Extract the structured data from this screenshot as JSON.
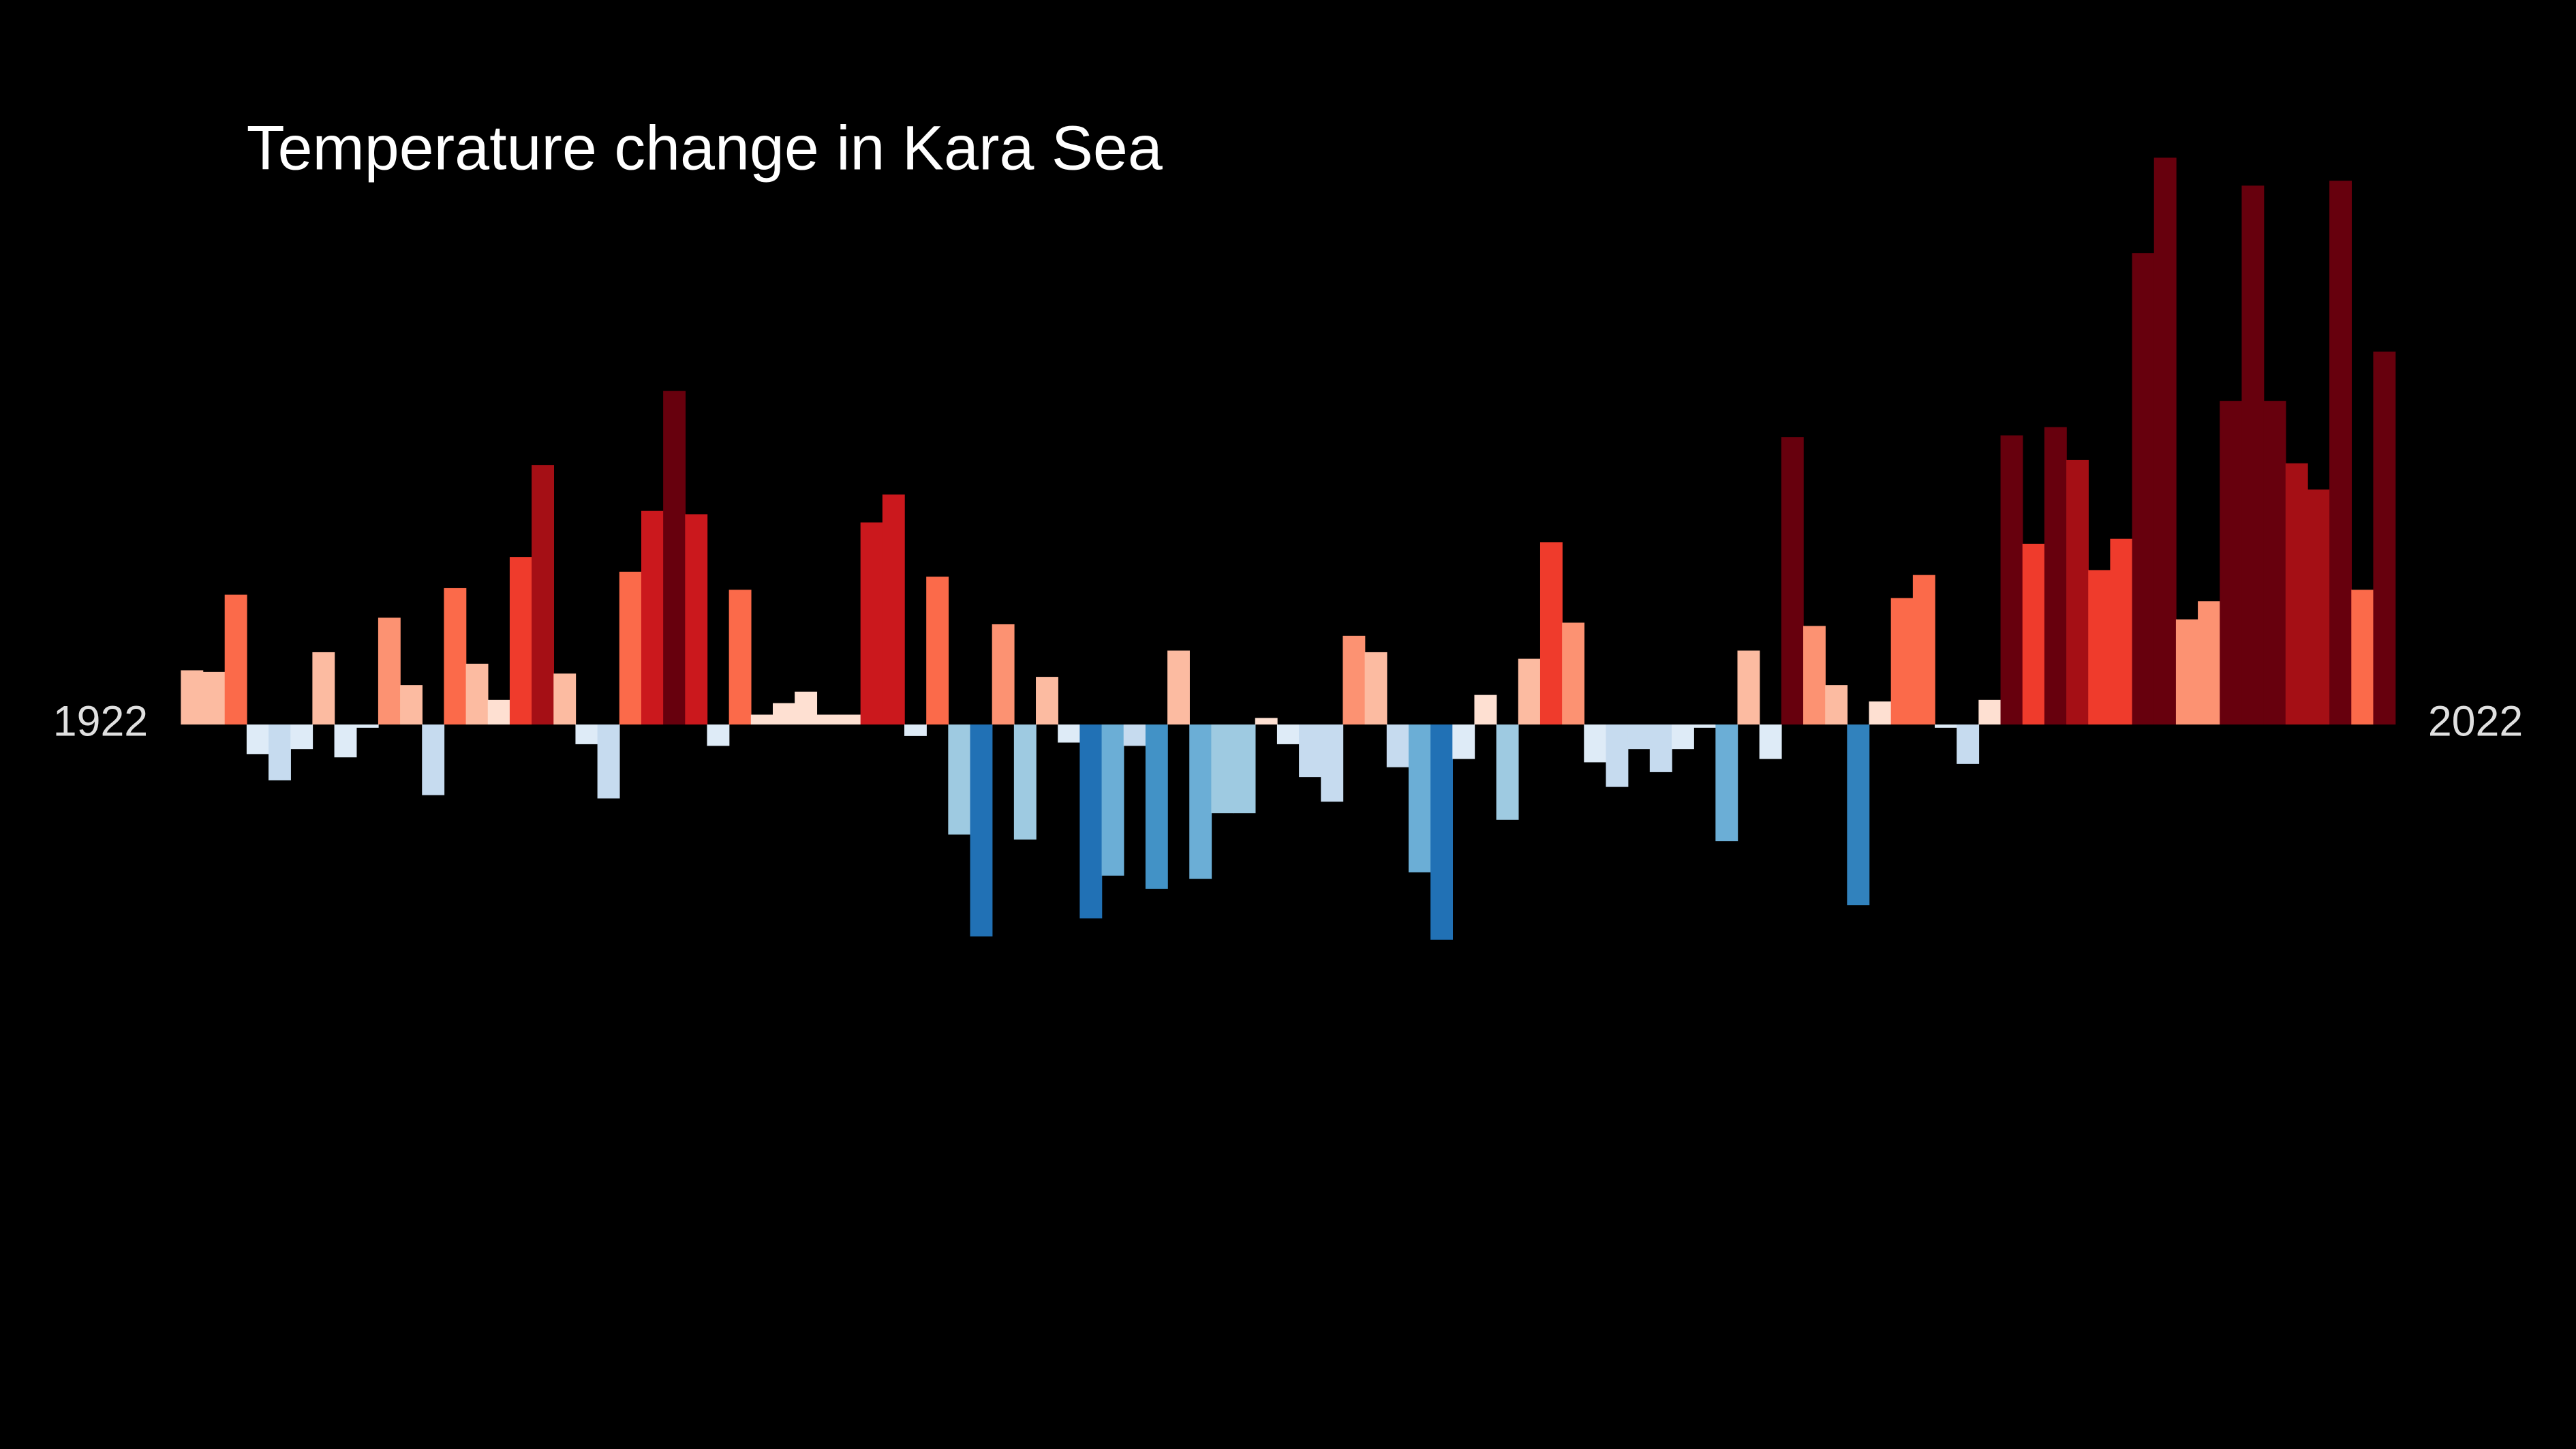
{
  "chart_data": {
    "type": "bar",
    "title": "Temperature change in Kara Sea",
    "categories": [
      "1922",
      null,
      null,
      null,
      null,
      null,
      null,
      null,
      null,
      null,
      null,
      null,
      null,
      null,
      null,
      null,
      null,
      null,
      null,
      null,
      null,
      null,
      null,
      null,
      null,
      null,
      null,
      null,
      null,
      null,
      null,
      null,
      null,
      null,
      null,
      null,
      null,
      null,
      null,
      null,
      null,
      null,
      null,
      null,
      null,
      null,
      null,
      null,
      null,
      null,
      null,
      null,
      null,
      null,
      null,
      null,
      null,
      null,
      null,
      null,
      null,
      null,
      null,
      null,
      null,
      null,
      null,
      null,
      null,
      null,
      null,
      null,
      null,
      null,
      null,
      null,
      null,
      null,
      null,
      null,
      null,
      null,
      null,
      null,
      null,
      null,
      null,
      null,
      null,
      null,
      null,
      null,
      null,
      null,
      null,
      null,
      null,
      null,
      null,
      null,
      "2022"
    ],
    "values": [
      0.33,
      0.32,
      0.79,
      -0.18,
      -0.34,
      -0.15,
      0.44,
      -0.2,
      -0.02,
      0.65,
      0.24,
      -0.43,
      0.83,
      0.37,
      0.15,
      1.02,
      1.58,
      0.31,
      -0.12,
      -0.45,
      0.93,
      1.3,
      2.03,
      1.28,
      -0.13,
      0.82,
      0.06,
      0.13,
      0.2,
      0.06,
      0.06,
      1.23,
      1.4,
      -0.07,
      0.9,
      -0.67,
      -1.29,
      0.61,
      -0.7,
      0.29,
      -0.11,
      -1.18,
      -0.92,
      -0.13,
      -1.0,
      0.45,
      -0.94,
      -0.54,
      -0.54,
      0.04,
      -0.12,
      -0.32,
      -0.47,
      0.54,
      0.44,
      -0.26,
      -0.9,
      -1.31,
      -0.21,
      0.18,
      -0.58,
      0.4,
      1.11,
      0.62,
      -0.23,
      -0.38,
      -0.15,
      -0.29,
      -0.15,
      -0.02,
      -0.71,
      0.45,
      -0.21,
      1.75,
      0.6,
      0.24,
      -1.1,
      0.14,
      0.77,
      0.91,
      -0.02,
      -0.24,
      0.15,
      1.76,
      1.1,
      1.81,
      1.61,
      0.94,
      1.13,
      2.87,
      3.45,
      0.64,
      0.75,
      1.97,
      3.28,
      1.97,
      1.59,
      1.43,
      3.31,
      0.82,
      2.27
    ],
    "colors": [
      "#fcbba1",
      "#fcbba1",
      "#fb6a4a",
      "#deebf7",
      "#c6dbef",
      "#deebf7",
      "#fcbba1",
      "#deebf7",
      "#deebf7",
      "#fc9272",
      "#fcbba1",
      "#c6dbef",
      "#fb6a4a",
      "#fcbba1",
      "#fee0d2",
      "#ef3b2c",
      "#a50f15",
      "#fcbba1",
      "#deebf7",
      "#c6dbef",
      "#fb6a4a",
      "#cb181d",
      "#67000d",
      "#cb181d",
      "#deebf7",
      "#fb6a4a",
      "#fee0d2",
      "#fee0d2",
      "#fee0d2",
      "#fee0d2",
      "#fee0d2",
      "#cb181d",
      "#cb181d",
      "#deebf7",
      "#fb6a4a",
      "#9ecae1",
      "#2171b5",
      "#fc9272",
      "#9ecae1",
      "#fcbba1",
      "#deebf7",
      "#2171b5",
      "#6baed6",
      "#c6dbef",
      "#4292c6",
      "#fcbba1",
      "#6baed6",
      "#9ecae1",
      "#9ecae1",
      "#fee0d2",
      "#deebf7",
      "#c6dbef",
      "#c6dbef",
      "#fc9272",
      "#fcbba1",
      "#c6dbef",
      "#6baed6",
      "#2171b5",
      "#deebf7",
      "#fee0d2",
      "#9ecae1",
      "#fcbba1",
      "#ef3b2c",
      "#fc9272",
      "#deebf7",
      "#c6dbef",
      "#c6dbef",
      "#c6dbef",
      "#deebf7",
      "#deebf7",
      "#6baed6",
      "#fcbba1",
      "#deebf7",
      "#67000d",
      "#fc9272",
      "#fcbba1",
      "#3182bd",
      "#fee0d2",
      "#fb6a4a",
      "#fb6a4a",
      "#deebf7",
      "#c6dbef",
      "#fee0d2",
      "#67000d",
      "#ef3b2c",
      "#67000d",
      "#a50f15",
      "#ef3b2c",
      "#ef3b2c",
      "#67000d",
      "#67000d",
      "#fc9272",
      "#fc9272",
      "#67000d",
      "#67000d",
      "#67000d",
      "#a50f15",
      "#a50f15",
      "#67000d",
      "#fb6a4a",
      "#67000d"
    ],
    "ylim": [
      -4.41,
      4.41
    ]
  }
}
